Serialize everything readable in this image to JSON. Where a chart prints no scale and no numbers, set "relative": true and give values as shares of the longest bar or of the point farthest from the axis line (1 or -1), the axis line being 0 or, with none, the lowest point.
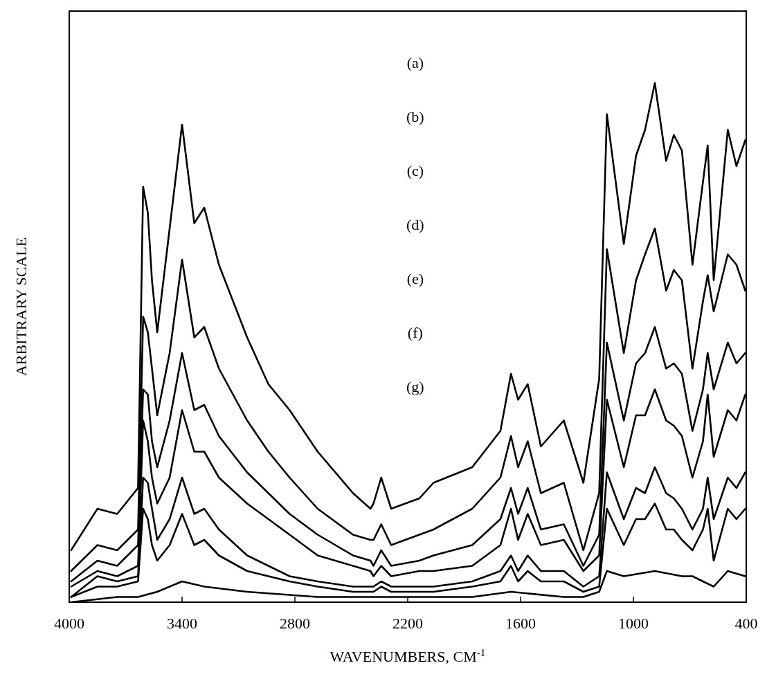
{
  "chart_data": {
    "type": "line",
    "xlabel": "WAVENUMBERS, CM$^{-1}$",
    "ylabel": "ARBITRARY SCALE",
    "relative": true,
    "xlim": [
      4000,
      400
    ],
    "xticks": [
      4000,
      3400,
      2800,
      2200,
      1600,
      1000,
      400
    ],
    "annotations": [
      "(a)",
      "(b)",
      "(c)",
      "(d)",
      "(e)",
      "(f)",
      "(g)"
    ],
    "x": [
      3990,
      3850,
      3745,
      3634,
      3607,
      3582,
      3560,
      3532,
      3466,
      3400,
      3335,
      3282,
      3204,
      3054,
      2941,
      2828,
      2679,
      2491,
      2398,
      2382,
      2341,
      2288,
      2138,
      2063,
      1857,
      1707,
      1651,
      1613,
      1562,
      1492,
      1370,
      1266,
      1182,
      1141,
      1051,
      986,
      938,
      886,
      826,
      785,
      742,
      686,
      630,
      605,
      573,
      498,
      452,
      405
    ],
    "series": [
      {
        "color": "#000000",
        "values": [
          0.1,
          0.18,
          0.17,
          0.22,
          0.8,
          0.75,
          0.62,
          0.52,
          0.72,
          0.92,
          0.73,
          0.76,
          0.65,
          0.51,
          0.42,
          0.37,
          0.29,
          0.21,
          0.18,
          0.19,
          0.24,
          0.18,
          0.2,
          0.23,
          0.26,
          0.33,
          0.44,
          0.39,
          0.42,
          0.3,
          0.35,
          0.23,
          0.43,
          0.94,
          0.69,
          0.86,
          0.91,
          1.0,
          0.85,
          0.9,
          0.87,
          0.65,
          0.81,
          0.88,
          0.62,
          0.91,
          0.84,
          0.89
        ]
      },
      {
        "color": "#000000",
        "values": [
          0.06,
          0.11,
          0.1,
          0.14,
          0.55,
          0.52,
          0.45,
          0.36,
          0.48,
          0.66,
          0.51,
          0.53,
          0.45,
          0.35,
          0.29,
          0.24,
          0.18,
          0.13,
          0.12,
          0.12,
          0.15,
          0.11,
          0.13,
          0.14,
          0.18,
          0.24,
          0.32,
          0.26,
          0.31,
          0.21,
          0.23,
          0.1,
          0.21,
          0.68,
          0.48,
          0.62,
          0.67,
          0.72,
          0.6,
          0.64,
          0.62,
          0.45,
          0.58,
          0.63,
          0.56,
          0.67,
          0.65,
          0.6
        ]
      },
      {
        "color": "#000000",
        "values": [
          0.04,
          0.08,
          0.07,
          0.11,
          0.41,
          0.4,
          0.31,
          0.26,
          0.35,
          0.48,
          0.37,
          0.38,
          0.32,
          0.25,
          0.21,
          0.17,
          0.13,
          0.09,
          0.08,
          0.07,
          0.1,
          0.07,
          0.08,
          0.09,
          0.11,
          0.16,
          0.22,
          0.17,
          0.22,
          0.14,
          0.15,
          0.07,
          0.13,
          0.5,
          0.35,
          0.46,
          0.48,
          0.53,
          0.45,
          0.46,
          0.44,
          0.33,
          0.41,
          0.48,
          0.41,
          0.5,
          0.46,
          0.48
        ]
      },
      {
        "color": "#000000",
        "values": [
          0.03,
          0.06,
          0.05,
          0.07,
          0.35,
          0.31,
          0.24,
          0.19,
          0.24,
          0.37,
          0.29,
          0.29,
          0.24,
          0.19,
          0.16,
          0.13,
          0.09,
          0.07,
          0.06,
          0.05,
          0.07,
          0.05,
          0.06,
          0.06,
          0.07,
          0.11,
          0.18,
          0.12,
          0.17,
          0.11,
          0.12,
          0.06,
          0.09,
          0.39,
          0.26,
          0.36,
          0.36,
          0.41,
          0.35,
          0.34,
          0.32,
          0.24,
          0.31,
          0.4,
          0.28,
          0.37,
          0.35,
          0.4
        ]
      },
      {
        "color": "#000000",
        "values": [
          0.01,
          0.05,
          0.04,
          0.05,
          0.24,
          0.23,
          0.18,
          0.12,
          0.16,
          0.24,
          0.17,
          0.18,
          0.14,
          0.09,
          0.07,
          0.05,
          0.04,
          0.03,
          0.03,
          0.03,
          0.04,
          0.03,
          0.03,
          0.03,
          0.04,
          0.06,
          0.09,
          0.06,
          0.09,
          0.06,
          0.06,
          0.03,
          0.05,
          0.25,
          0.16,
          0.22,
          0.21,
          0.26,
          0.21,
          0.2,
          0.18,
          0.14,
          0.18,
          0.24,
          0.16,
          0.24,
          0.22,
          0.25
        ]
      },
      {
        "color": "#000000",
        "values": [
          0.01,
          0.03,
          0.03,
          0.04,
          0.18,
          0.16,
          0.11,
          0.08,
          0.11,
          0.17,
          0.11,
          0.12,
          0.09,
          0.06,
          0.05,
          0.04,
          0.03,
          0.02,
          0.02,
          0.02,
          0.03,
          0.02,
          0.02,
          0.02,
          0.03,
          0.04,
          0.07,
          0.04,
          0.06,
          0.04,
          0.04,
          0.02,
          0.03,
          0.18,
          0.11,
          0.16,
          0.16,
          0.19,
          0.14,
          0.14,
          0.12,
          0.1,
          0.14,
          0.18,
          0.08,
          0.18,
          0.16,
          0.18
        ]
      },
      {
        "color": "#000000",
        "x": [
          3990,
          3745,
          3634,
          3532,
          3400,
          3282,
          3054,
          2679,
          2382,
          1857,
          1651,
          1370,
          1266,
          1182,
          1141,
          1051,
          886,
          742,
          686,
          630,
          573,
          498,
          405
        ],
        "values": [
          0.0,
          0.01,
          0.01,
          0.02,
          0.04,
          0.03,
          0.02,
          0.01,
          0.01,
          0.01,
          0.02,
          0.01,
          0.01,
          0.02,
          0.06,
          0.05,
          0.06,
          0.05,
          0.05,
          0.04,
          0.03,
          0.06,
          0.05
        ]
      }
    ]
  }
}
